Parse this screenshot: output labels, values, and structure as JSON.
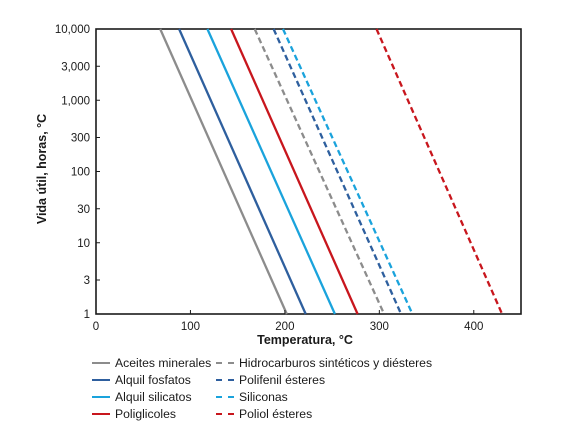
{
  "chart_data": {
    "type": "line",
    "title": "",
    "xlabel": "Temperatura, °C",
    "ylabel": "Vida útil, horas, °C",
    "xlim": [
      0,
      450
    ],
    "ylim": [
      1,
      10000
    ],
    "yscale": "log",
    "xticks": [
      0,
      100,
      200,
      300,
      400
    ],
    "yticks": [
      {
        "value": 1,
        "label": "1"
      },
      {
        "value": 3,
        "label": "3"
      },
      {
        "value": 10,
        "label": "10"
      },
      {
        "value": 30,
        "label": "30"
      },
      {
        "value": 100,
        "label": "100"
      },
      {
        "value": 300,
        "label": "300"
      },
      {
        "value": 1000,
        "label": "1,000"
      },
      {
        "value": 3000,
        "label": "3,000"
      },
      {
        "value": 10000,
        "label": "10,000"
      }
    ],
    "grid": false,
    "legend_position": "bottom",
    "series": [
      {
        "name": "Aceites minerales",
        "color": "#8c8c8c",
        "style": "solid",
        "x": [
          68,
          202
        ],
        "y": [
          10000,
          1
        ]
      },
      {
        "name": "Hidrocarburos sintéticos y diésteres",
        "color": "#8c8c8c",
        "style": "dashed",
        "x": [
          168,
          305
        ],
        "y": [
          10000,
          1
        ]
      },
      {
        "name": "Alquil fosfatos",
        "color": "#2e5f9e",
        "style": "solid",
        "x": [
          88,
          222
        ],
        "y": [
          10000,
          1
        ]
      },
      {
        "name": "Polifenil ésteres",
        "color": "#2e5f9e",
        "style": "dashed",
        "x": [
          188,
          323
        ],
        "y": [
          10000,
          1
        ]
      },
      {
        "name": "Alquil silicatos",
        "color": "#1aa3dc",
        "style": "solid",
        "x": [
          118,
          253
        ],
        "y": [
          10000,
          1
        ]
      },
      {
        "name": "Siliconas",
        "color": "#1aa3dc",
        "style": "dashed",
        "x": [
          198,
          335
        ],
        "y": [
          10000,
          1
        ]
      },
      {
        "name": "Poliglicoles",
        "color": "#c8161d",
        "style": "solid",
        "x": [
          143,
          277
        ],
        "y": [
          10000,
          1
        ]
      },
      {
        "name": "Poliol ésteres",
        "color": "#c8161d",
        "style": "dashed",
        "x": [
          297,
          430
        ],
        "y": [
          10000,
          1
        ]
      }
    ]
  }
}
